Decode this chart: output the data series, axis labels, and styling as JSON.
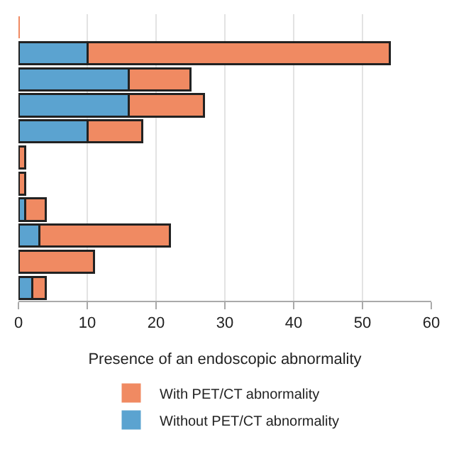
{
  "chart_data": {
    "type": "bar",
    "orientation": "horizontal",
    "stacked": true,
    "categories": [
      null,
      null,
      null,
      null,
      null,
      null,
      null,
      null,
      null,
      null,
      null
    ],
    "series": [
      {
        "name": "Without PET/CT abnormality",
        "color": "#5ba3d0",
        "values": [
          0,
          10,
          16,
          16,
          10,
          0,
          0,
          1,
          3,
          0,
          2
        ]
      },
      {
        "name": "With PET/CT abnormality",
        "color": "#f08a62",
        "values": [
          0,
          44,
          9,
          11,
          8,
          1,
          1,
          3,
          19,
          11,
          2
        ]
      }
    ],
    "xlabel": "Presence of an endoscopic abnormality",
    "xlim": [
      0,
      60
    ],
    "xticks": [
      0,
      10,
      20,
      30,
      40,
      50,
      60
    ],
    "grid": "x",
    "legend": "bottom",
    "tick_labels": "x"
  }
}
